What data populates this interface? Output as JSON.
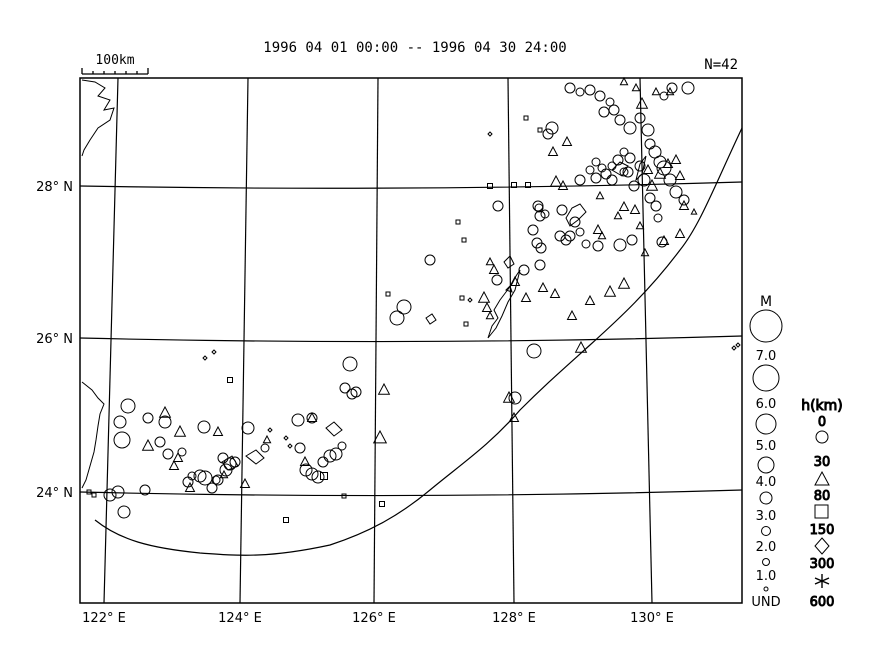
{
  "header": {
    "title": "1996 04 01 00:00 -- 1996 04 30 24:00",
    "count": "N=42"
  },
  "scalebar": {
    "label": "100km"
  },
  "latitude_labels": [
    "28° N",
    "26° N",
    "24° N"
  ],
  "longitude_labels": [
    "122° E",
    "124° E",
    "126° E",
    "128° E",
    "130° E"
  ],
  "legend_magnitude": {
    "title": "M",
    "levels": [
      "7.0",
      "6.0",
      "5.0",
      "4.0",
      "3.0",
      "2.0",
      "1.0",
      "UND"
    ]
  },
  "legend_depth": {
    "title": "h(km)",
    "levels": [
      "0",
      "30",
      "80",
      "150",
      "300",
      "600"
    ],
    "symbols": [
      "circle",
      "triangle",
      "square",
      "diamond",
      "asterisk"
    ]
  },
  "colors": {
    "ink": "#000000",
    "paper": "#ffffff"
  }
}
